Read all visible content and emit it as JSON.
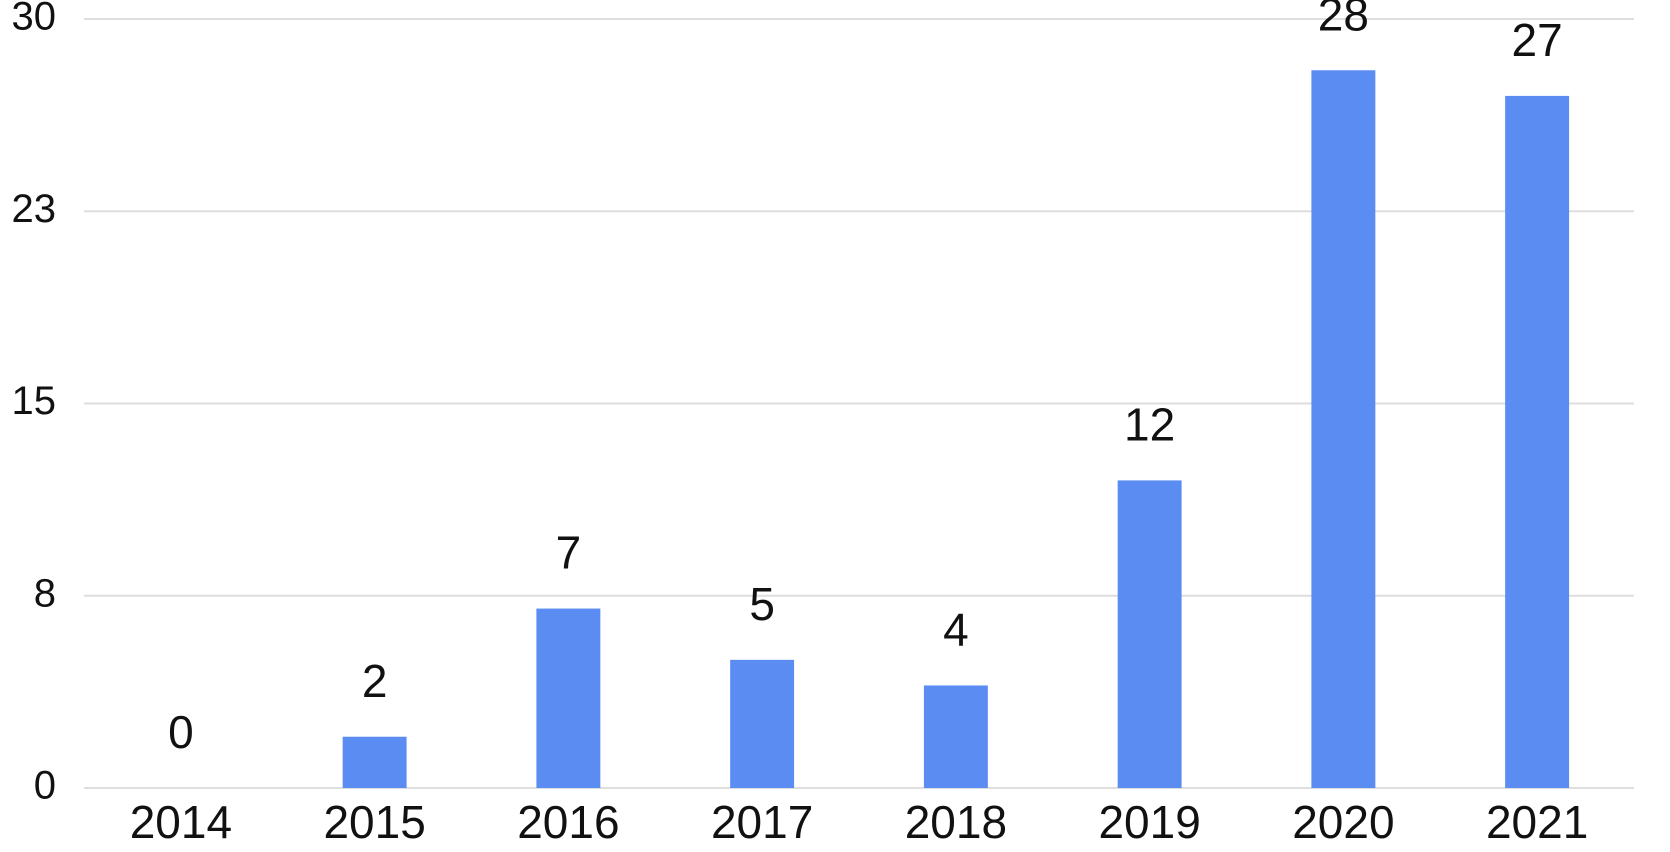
{
  "chart_data": {
    "type": "bar",
    "categories": [
      "2014",
      "2015",
      "2016",
      "2017",
      "2018",
      "2019",
      "2020",
      "2021"
    ],
    "values": [
      0,
      2,
      7,
      5,
      4,
      12,
      28,
      27
    ],
    "color": "#5a8cf2",
    "ylim": [
      0,
      30
    ],
    "yticks": [
      0,
      {
        "value": 7.5,
        "label": "8"
      },
      15,
      {
        "value": 22.5,
        "label": "23"
      },
      30
    ],
    "grid": true
  }
}
